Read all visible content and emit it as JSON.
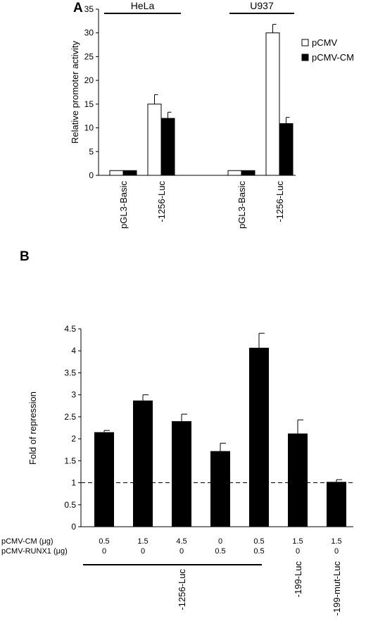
{
  "chart_data": [
    {
      "panel": "A",
      "type": "bar",
      "ylabel": "Relative promoter activity",
      "ylim": [
        0,
        35
      ],
      "yticks": [
        0,
        5,
        10,
        15,
        20,
        25,
        30,
        35
      ],
      "groups": [
        {
          "label": "HeLa",
          "categories": [
            "pGL3-Basic",
            "-1256-Luc"
          ]
        },
        {
          "label": "U937",
          "categories": [
            "pGL3-Basic",
            "-1256-Luc"
          ]
        }
      ],
      "categories": [
        "pGL3-Basic",
        "-1256-Luc",
        "pGL3-Basic",
        "-1256-Luc"
      ],
      "series": [
        {
          "name": "pCMV",
          "color": "#ffffff",
          "values": [
            1,
            15,
            1,
            30
          ],
          "errors": [
            0,
            2,
            0,
            1.8
          ]
        },
        {
          "name": "pCMV-CM",
          "color": "#000000",
          "values": [
            1,
            12,
            1,
            10.9
          ],
          "errors": [
            0,
            1.3,
            0,
            1.3
          ]
        }
      ],
      "legend": "right",
      "grid": false
    },
    {
      "panel": "B",
      "type": "bar",
      "ylabel": "Fold of repression",
      "ylim": [
        0,
        4.5
      ],
      "yticks": [
        "0",
        "0.5",
        "1",
        "1.5",
        "2",
        "2.5",
        "3",
        "3.5",
        "4",
        "4.5"
      ],
      "reference_line": 1,
      "values": [
        2.15,
        2.87,
        2.4,
        1.72,
        4.07,
        2.12,
        1.02
      ],
      "errors": [
        0.04,
        0.13,
        0.16,
        0.18,
        0.33,
        0.31,
        0.05
      ],
      "color": "#000000",
      "table_rows": [
        {
          "label": "pCMV-CM (μg)",
          "values": [
            "0.5",
            "1.5",
            "4.5",
            "0",
            "0.5",
            "1.5",
            "1.5"
          ]
        },
        {
          "label": "pCMV-RUNX1 (μg)",
          "values": [
            "0",
            "0",
            "0",
            "0.5",
            "0.5",
            "0",
            "0"
          ]
        }
      ],
      "constructs": [
        {
          "label": "-1256-Luc",
          "span": [
            0,
            4
          ]
        },
        {
          "label": "-199-Luc",
          "span": [
            5,
            5
          ]
        },
        {
          "label": "-199-mut-Luc",
          "span": [
            6,
            6
          ]
        }
      ],
      "grid": false
    }
  ]
}
